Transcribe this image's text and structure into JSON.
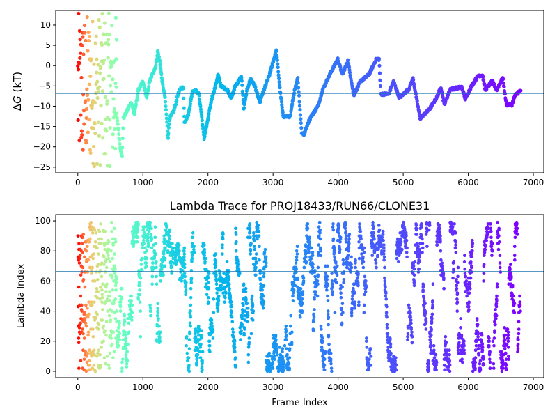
{
  "chart_data": [
    {
      "type": "scatter",
      "title": "",
      "xlabel": "",
      "ylabel_symbol": "Δ",
      "ylabel_var": "G",
      "ylabel_unit": " (kT)",
      "xlim": [
        -340,
        7160
      ],
      "ylim": [
        -26.4,
        13.6
      ],
      "xticks": [
        0,
        1000,
        2000,
        3000,
        4000,
        5000,
        6000,
        7000
      ],
      "yticks": [
        -25,
        -20,
        -15,
        -10,
        -5,
        0,
        5,
        10
      ],
      "hline": -6.8,
      "hline_color": "#1f77b4",
      "colormap": "rainbow (reversed by frame)",
      "early_scatter": {
        "frames": [
          0,
          600
        ],
        "range": [
          -25,
          13
        ]
      },
      "trace": [
        [
          600,
          -12
        ],
        [
          650,
          -20
        ],
        [
          680,
          -22.5
        ],
        [
          700,
          -13
        ],
        [
          760,
          -11
        ],
        [
          820,
          -9
        ],
        [
          870,
          -12
        ],
        [
          930,
          -6
        ],
        [
          1000,
          -4
        ],
        [
          1060,
          -8
        ],
        [
          1100,
          -4
        ],
        [
          1150,
          -2
        ],
        [
          1200,
          0
        ],
        [
          1228,
          3.6
        ],
        [
          1260,
          1
        ],
        [
          1297,
          -3.9
        ],
        [
          1340,
          -8
        ],
        [
          1388,
          -17.6
        ],
        [
          1410,
          -13
        ],
        [
          1480,
          -11
        ],
        [
          1540,
          -7
        ],
        [
          1585,
          -5.5
        ],
        [
          1620,
          -5.5
        ],
        [
          1638,
          -14
        ],
        [
          1700,
          -12
        ],
        [
          1760,
          -6.5
        ],
        [
          1800,
          -6
        ],
        [
          1860,
          -7
        ],
        [
          1900,
          -12
        ],
        [
          1940,
          -18
        ],
        [
          1990,
          -14
        ],
        [
          2060,
          -8
        ],
        [
          2120,
          -4.7
        ],
        [
          2154,
          -2.2
        ],
        [
          2200,
          -5
        ],
        [
          2300,
          -6
        ],
        [
          2360,
          -8
        ],
        [
          2420,
          -5
        ],
        [
          2515,
          -2.7
        ],
        [
          2550,
          -10.7
        ],
        [
          2600,
          -6
        ],
        [
          2655,
          -3.2
        ],
        [
          2720,
          -5
        ],
        [
          2795,
          -9
        ],
        [
          2860,
          -6
        ],
        [
          2950,
          -2
        ],
        [
          3000,
          1
        ],
        [
          3050,
          3.6
        ],
        [
          3105,
          -5.6
        ],
        [
          3155,
          -12.5
        ],
        [
          3265,
          -12.5
        ],
        [
          3330,
          -6
        ],
        [
          3380,
          -3
        ],
        [
          3440,
          -16.5
        ],
        [
          3475,
          -17
        ],
        [
          3540,
          -14
        ],
        [
          3585,
          -12.5
        ],
        [
          3690,
          -10
        ],
        [
          3760,
          -6
        ],
        [
          3870,
          -2.2
        ],
        [
          3995,
          1.6
        ],
        [
          4065,
          -2.2
        ],
        [
          4150,
          1.2
        ],
        [
          4240,
          -7.3
        ],
        [
          4345,
          -3.8
        ],
        [
          4475,
          -2.2
        ],
        [
          4585,
          1.6
        ],
        [
          4630,
          1.6
        ],
        [
          4655,
          -7
        ],
        [
          4780,
          -7
        ],
        [
          4850,
          -3.8
        ],
        [
          4940,
          -7.9
        ],
        [
          5085,
          -5.8
        ],
        [
          5150,
          -3.2
        ],
        [
          5260,
          -13
        ],
        [
          5405,
          -10.7
        ],
        [
          5515,
          -7.9
        ],
        [
          5580,
          -5.3
        ],
        [
          5630,
          -9.6
        ],
        [
          5725,
          -5.8
        ],
        [
          5900,
          -5.3
        ],
        [
          5955,
          -8.2
        ],
        [
          6050,
          -5
        ],
        [
          6155,
          -2.4
        ],
        [
          6220,
          -2.4
        ],
        [
          6260,
          -6
        ],
        [
          6370,
          -3.8
        ],
        [
          6435,
          -6
        ],
        [
          6530,
          -3
        ],
        [
          6585,
          -9.6
        ],
        [
          6670,
          -9.6
        ],
        [
          6720,
          -7.3
        ],
        [
          6810,
          -6
        ]
      ]
    },
    {
      "type": "scatter",
      "title": "Lambda Trace for PROJ18433/RUN66/CLONE31",
      "xlabel": "Frame Index",
      "ylabel": "Lambda Index",
      "xlim": [
        -340,
        7160
      ],
      "ylim": [
        -4.2,
        104.2
      ],
      "xticks": [
        0,
        1000,
        2000,
        3000,
        4000,
        5000,
        6000,
        7000
      ],
      "yticks": [
        0,
        20,
        40,
        60,
        80,
        100
      ],
      "hline": 66.2,
      "hline_color": "#1f77b4",
      "frame_range": [
        0,
        6800
      ],
      "lambda_range": [
        0,
        99
      ]
    }
  ]
}
